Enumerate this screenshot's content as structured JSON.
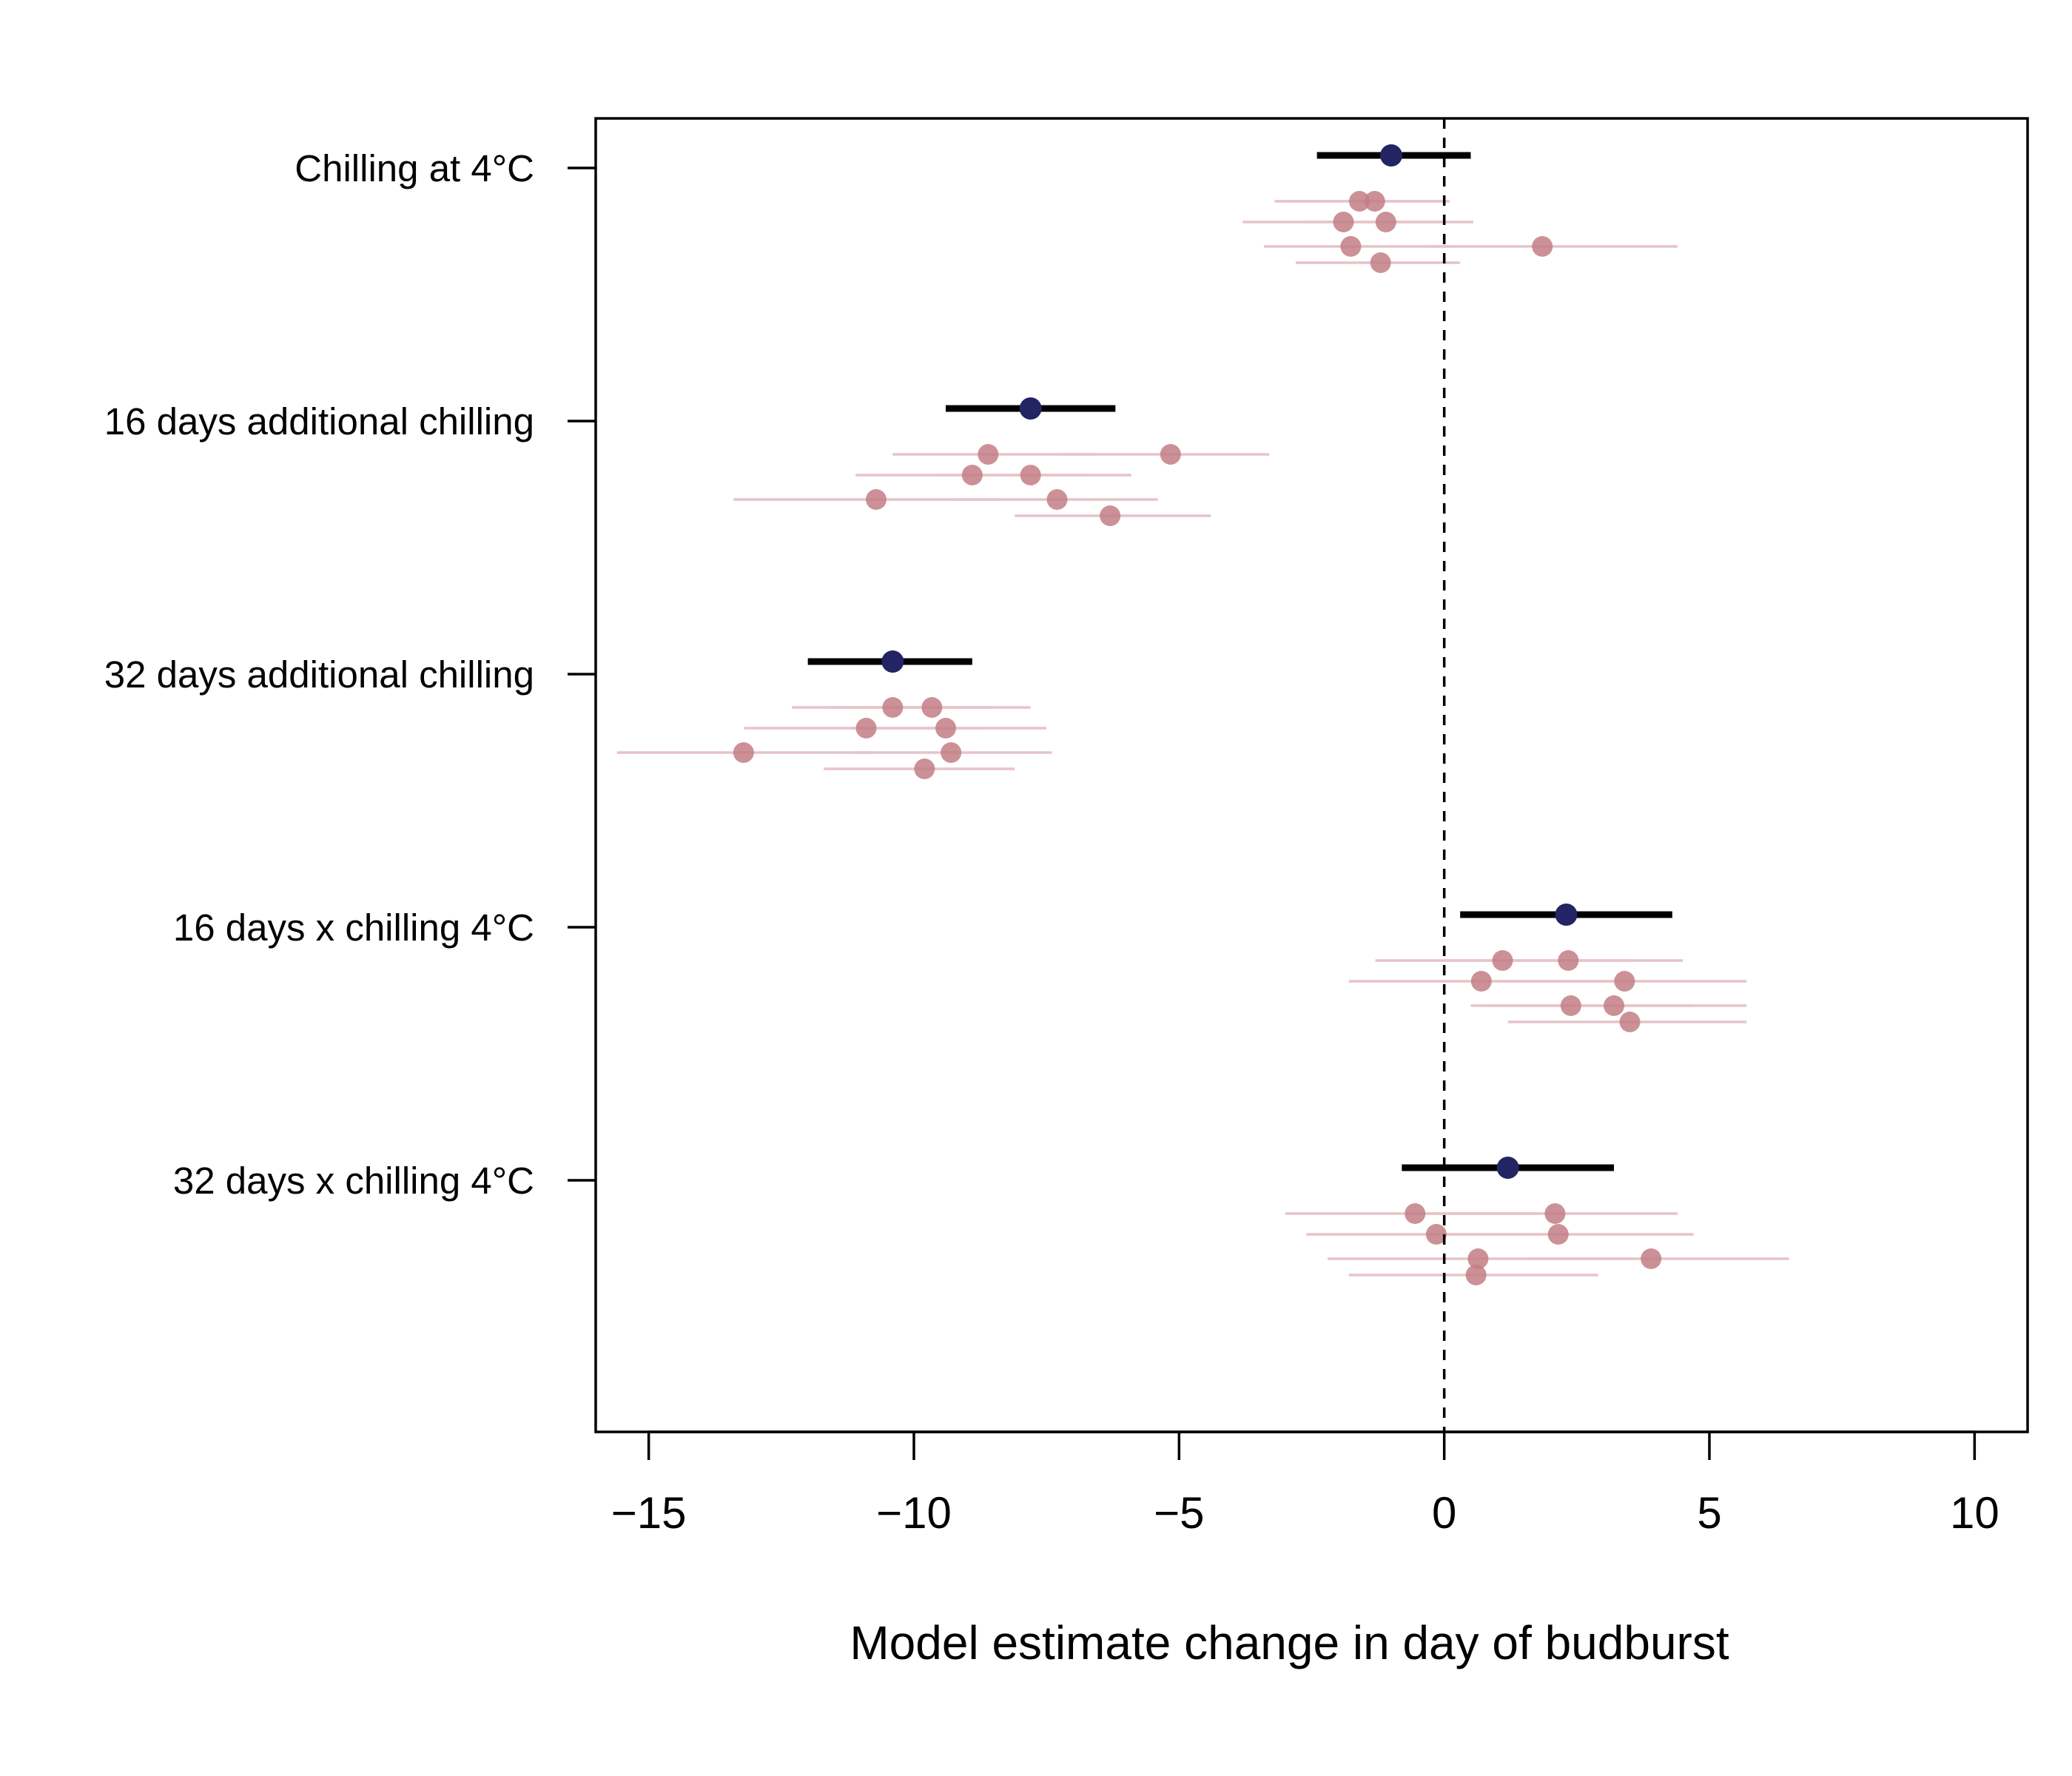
{
  "chart_data": {
    "type": "forest",
    "title": "",
    "xlabel": "Model estimate change in day of budburst",
    "ylabel": "",
    "xlim": [
      -16,
      11
    ],
    "xticks": [
      -15,
      -10,
      -5,
      0,
      5,
      10
    ],
    "xtick_labels": [
      "−15",
      "−10",
      "−5",
      "0",
      "5",
      "10"
    ],
    "reference_line": 0,
    "categories": [
      "Chilling at 4°C",
      "16 days additional chilling",
      "32 days additional chilling",
      "16 days x chilling 4°C",
      "32 days x chilling 4°C"
    ],
    "colors": {
      "overall_point": "#232464",
      "overall_interval": "#000000",
      "species_point": "#c27e85",
      "species_interval": "#e6c4c7"
    },
    "groups": [
      {
        "category": "Chilling at 4°C",
        "overall": {
          "estimate": -1.0,
          "low": -2.4,
          "high": 0.5
        },
        "species": [
          {
            "estimate": -1.6,
            "low": -3.2,
            "high": 0.0
          },
          {
            "estimate": -1.45,
            "low": -3.0,
            "high": 0.1
          },
          {
            "estimate": -1.9,
            "low": -3.8,
            "high": 0.1
          },
          {
            "estimate": -1.1,
            "low": -2.7,
            "high": 0.55
          },
          {
            "estimate": -1.65,
            "low": -3.4,
            "high": 0.1
          },
          {
            "estimate": 1.85,
            "low": -0.3,
            "high": 4.4
          },
          {
            "estimate": -1.2,
            "low": -2.8,
            "high": 0.3
          }
        ]
      },
      {
        "category": "16 days additional chilling",
        "overall": {
          "estimate": -7.8,
          "low": -9.4,
          "high": -6.2
        },
        "species": [
          {
            "estimate": -8.6,
            "low": -10.4,
            "high": -6.6
          },
          {
            "estimate": -5.3,
            "low": -7.2,
            "high": -3.3
          },
          {
            "estimate": -8.9,
            "low": -11.1,
            "high": -6.7
          },
          {
            "estimate": -7.8,
            "low": -9.6,
            "high": -5.9
          },
          {
            "estimate": -10.6,
            "low": -13.4,
            "high": -8.4
          },
          {
            "estimate": -7.3,
            "low": -9.2,
            "high": -5.4
          },
          {
            "estimate": -6.3,
            "low": -8.1,
            "high": -4.4
          }
        ]
      },
      {
        "category": "32 days additional chilling",
        "overall": {
          "estimate": -10.4,
          "low": -12.0,
          "high": -8.9
        },
        "species": [
          {
            "estimate": -10.4,
            "low": -12.3,
            "high": -8.5
          },
          {
            "estimate": -9.8,
            "low": -11.6,
            "high": -7.8
          },
          {
            "estimate": -10.9,
            "low": -13.2,
            "high": -8.7
          },
          {
            "estimate": -9.4,
            "low": -11.2,
            "high": -7.5
          },
          {
            "estimate": -13.1,
            "low": -15.6,
            "high": -10.8
          },
          {
            "estimate": -9.3,
            "low": -11.1,
            "high": -7.4
          },
          {
            "estimate": -9.8,
            "low": -11.7,
            "high": -8.1
          }
        ]
      },
      {
        "category": "16 days x chilling 4°C",
        "overall": {
          "estimate": 2.3,
          "low": 0.3,
          "high": 4.3
        },
        "species": [
          {
            "estimate": 1.1,
            "low": -1.3,
            "high": 3.5
          },
          {
            "estimate": 2.2,
            "low": 0.0,
            "high": 4.5
          },
          {
            "estimate": 0.7,
            "low": -1.8,
            "high": 3.3
          },
          {
            "estimate": 3.4,
            "low": 1.0,
            "high": 5.7
          },
          {
            "estimate": 2.5,
            "low": 0.5,
            "high": 4.7
          },
          {
            "estimate": 3.2,
            "low": 0.8,
            "high": 5.7
          },
          {
            "estimate": 3.5,
            "low": 1.2,
            "high": 5.7
          }
        ]
      },
      {
        "category": "32 days x chilling 4°C",
        "overall": {
          "estimate": 1.2,
          "low": -0.8,
          "high": 3.2
        },
        "species": [
          {
            "estimate": -0.55,
            "low": -3.0,
            "high": 1.8
          },
          {
            "estimate": 1.95,
            "low": -0.4,
            "high": 4.4
          },
          {
            "estimate": -0.15,
            "low": -2.6,
            "high": 2.3
          },
          {
            "estimate": 2.15,
            "low": -0.3,
            "high": 4.7
          },
          {
            "estimate": 0.75,
            "low": -2.2,
            "high": 3.6
          },
          {
            "estimate": 3.9,
            "low": 1.6,
            "high": 6.5
          },
          {
            "estimate": 0.6,
            "low": -1.8,
            "high": 2.9
          }
        ]
      }
    ]
  }
}
